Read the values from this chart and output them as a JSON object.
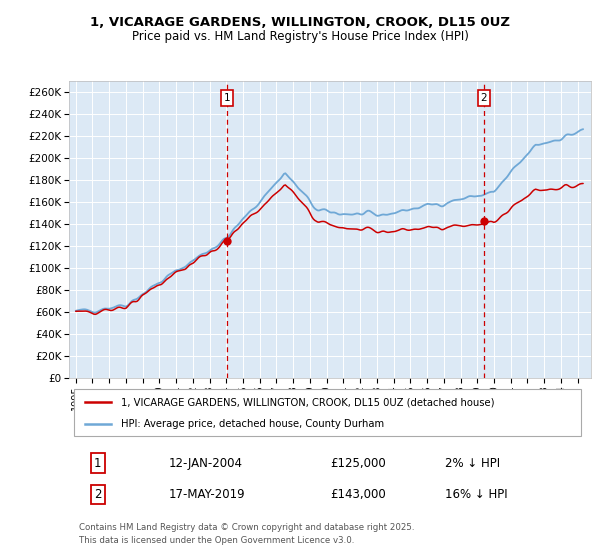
{
  "title": "1, VICARAGE GARDENS, WILLINGTON, CROOK, DL15 0UZ",
  "subtitle": "Price paid vs. HM Land Registry's House Price Index (HPI)",
  "ylim": [
    0,
    270000
  ],
  "yticks": [
    0,
    20000,
    40000,
    60000,
    80000,
    100000,
    120000,
    140000,
    160000,
    180000,
    200000,
    220000,
    240000,
    260000
  ],
  "ytick_labels": [
    "£0",
    "£20K",
    "£40K",
    "£60K",
    "£80K",
    "£100K",
    "£120K",
    "£140K",
    "£160K",
    "£180K",
    "£200K",
    "£220K",
    "£240K",
    "£260K"
  ],
  "hpi_color": "#6fa8d6",
  "property_color": "#cc0000",
  "vline_color": "#cc0000",
  "bg_color": "#dce9f5",
  "grid_color": "#ffffff",
  "purchase1_date_num": 2004.03,
  "purchase1_price": 125000,
  "purchase2_date_num": 2019.38,
  "purchase2_price": 143000,
  "legend1": "1, VICARAGE GARDENS, WILLINGTON, CROOK, DL15 0UZ (detached house)",
  "legend2": "HPI: Average price, detached house, County Durham",
  "table_row1": [
    "1",
    "12-JAN-2004",
    "£125,000",
    "2% ↓ HPI"
  ],
  "table_row2": [
    "2",
    "17-MAY-2019",
    "£143,000",
    "16% ↓ HPI"
  ],
  "footer": "Contains HM Land Registry data © Crown copyright and database right 2025.\nThis data is licensed under the Open Government Licence v3.0."
}
